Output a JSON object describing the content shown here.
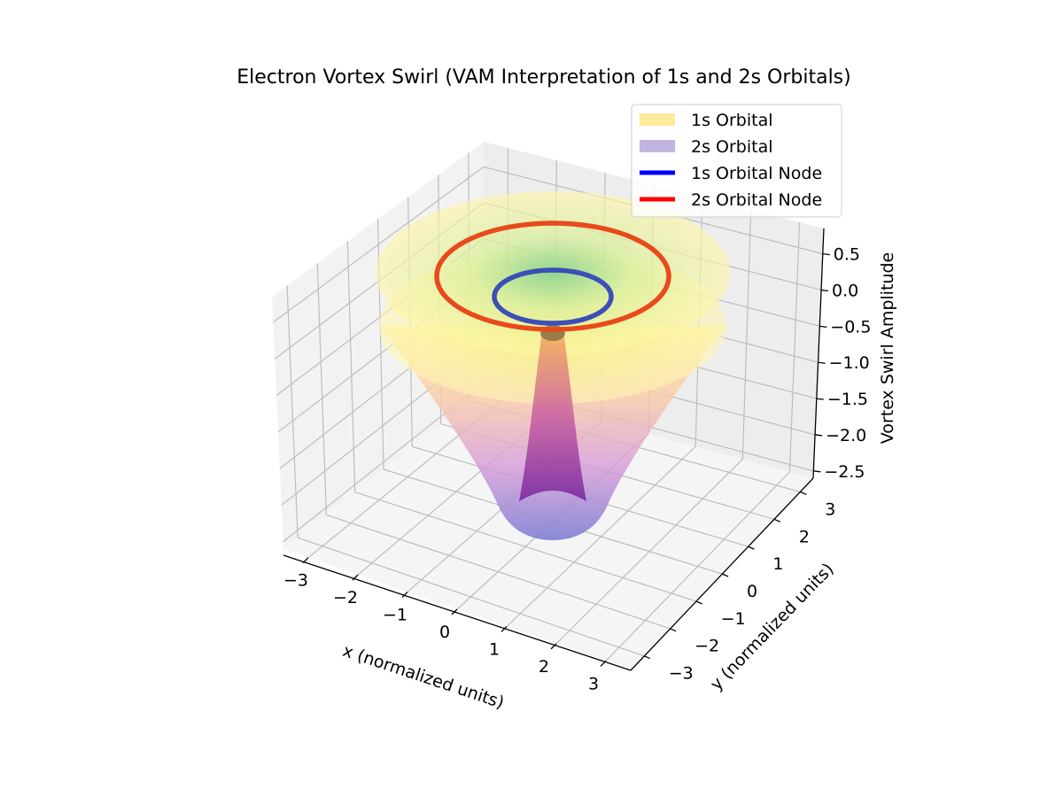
{
  "chart_data": {
    "type": "surface3d",
    "title": "Electron Vortex Swirl (VAM Interpretation of 1s and 2s Orbitals)",
    "xlabel": "x (normalized units)",
    "ylabel": "y (normalized units)",
    "zlabel": "Vortex Swirl Amplitude",
    "xlim": [
      -3.5,
      3.5
    ],
    "ylim": [
      -3.5,
      3.5
    ],
    "zlim": [
      -2.6,
      0.85
    ],
    "xticks": [
      "−3",
      "−2",
      "−1",
      "0",
      "1",
      "2",
      "3"
    ],
    "yticks": [
      "−3",
      "−2",
      "−1",
      "0",
      "1",
      "2",
      "3"
    ],
    "zticks": [
      "−2.5",
      "−2.0",
      "−1.5",
      "−1.0",
      "−0.5",
      "0.0",
      "0.5"
    ],
    "grid": true,
    "legend_position": "top-right",
    "series": [
      {
        "name": "1s Orbital",
        "kind": "surface",
        "color": "#fde68a",
        "colormap": "plasma"
      },
      {
        "name": "2s Orbital",
        "kind": "surface",
        "color": "#b9a7dc",
        "colormap": "viridis"
      },
      {
        "name": "1s Orbital Node",
        "kind": "ring",
        "color": "#0000ff",
        "radius": 1.0,
        "z": 0.0
      },
      {
        "name": "2s Orbital Node",
        "kind": "ring",
        "color": "#ff0000",
        "radius": 2.0,
        "z": 0.5
      }
    ]
  }
}
